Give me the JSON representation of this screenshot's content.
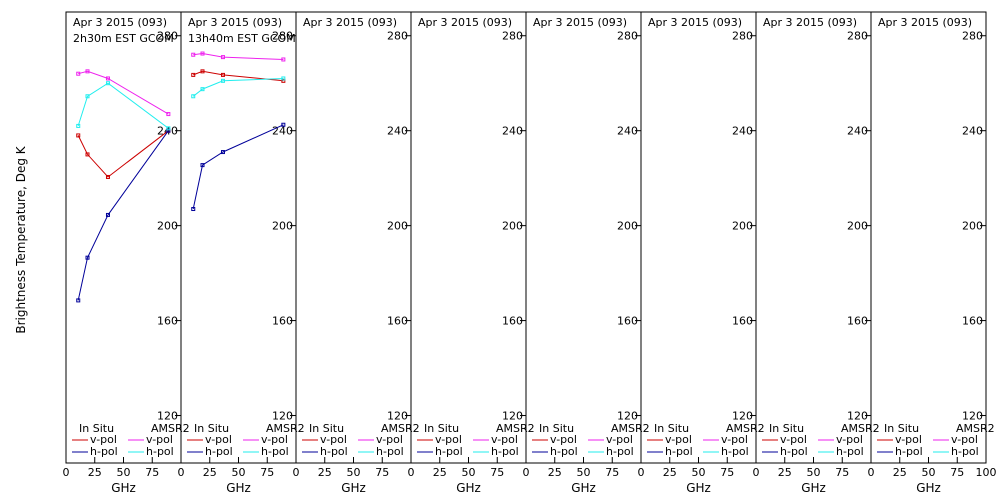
{
  "ylabel": "Brightness Temperature, Deg K",
  "xlabel": "GHz",
  "legend": {
    "insitu_header": "In Situ",
    "amsr2_header": "AMSR2",
    "vpol": "v-pol",
    "hpol": "h-pol"
  },
  "colors": {
    "insitu_v": "#cc0000",
    "insitu_h": "#000099",
    "amsr2_v": "#ee22ee",
    "amsr2_h": "#22eeee"
  },
  "chart_data": [
    {
      "type": "line",
      "title": "Apr 3 2015 (093)",
      "subtitle": "2h30m EST GCOM",
      "xlim": [
        0,
        100
      ],
      "ylim": [
        100,
        290
      ],
      "xticks": [
        0,
        25,
        50,
        75,
        100
      ],
      "yticks": [
        120,
        160,
        200,
        240,
        280
      ],
      "series": [
        {
          "name": "In Situ v-pol",
          "x": [
            10.65,
            18.7,
            36.5,
            89
          ],
          "y": [
            238,
            230,
            220.5,
            240
          ]
        },
        {
          "name": "In Situ h-pol",
          "x": [
            10.65,
            18.7,
            36.5,
            89
          ],
          "y": [
            168.5,
            186.5,
            204.5,
            240
          ]
        },
        {
          "name": "AMSR2 v-pol",
          "x": [
            10.65,
            18.7,
            36.5,
            89
          ],
          "y": [
            264,
            265,
            262,
            247
          ]
        },
        {
          "name": "AMSR2 h-pol",
          "x": [
            10.65,
            18.7,
            36.5,
            89
          ],
          "y": [
            242,
            254.5,
            260,
            241
          ]
        }
      ]
    },
    {
      "type": "line",
      "title": "Apr 3 2015 (093)",
      "subtitle": "13h40m EST GCOM",
      "xlim": [
        0,
        100
      ],
      "ylim": [
        100,
        290
      ],
      "xticks": [
        0,
        25,
        50,
        75,
        100
      ],
      "yticks": [
        120,
        160,
        200,
        240,
        280
      ],
      "series": [
        {
          "name": "In Situ v-pol",
          "x": [
            10.65,
            18.7,
            36.5,
            89
          ],
          "y": [
            263.5,
            265,
            263.5,
            261
          ]
        },
        {
          "name": "In Situ h-pol",
          "x": [
            10.65,
            18.7,
            36.5,
            89
          ],
          "y": [
            207,
            225.5,
            231,
            242.5
          ]
        },
        {
          "name": "AMSR2 v-pol",
          "x": [
            10.65,
            18.7,
            36.5,
            89
          ],
          "y": [
            272,
            272.5,
            271,
            270
          ]
        },
        {
          "name": "AMSR2 h-pol",
          "x": [
            10.65,
            18.7,
            36.5,
            89
          ],
          "y": [
            254.5,
            257.5,
            261,
            262
          ]
        }
      ]
    },
    {
      "type": "line",
      "title": "Apr 3 2015 (093)",
      "xlim": [
        0,
        100
      ],
      "ylim": [
        100,
        290
      ],
      "xticks": [
        0,
        25,
        50,
        75,
        100
      ],
      "yticks": [
        120,
        160,
        200,
        240,
        280
      ],
      "series": []
    },
    {
      "type": "line",
      "title": "Apr 3 2015 (093)",
      "xlim": [
        0,
        100
      ],
      "ylim": [
        100,
        290
      ],
      "xticks": [
        0,
        25,
        50,
        75,
        100
      ],
      "yticks": [
        120,
        160,
        200,
        240,
        280
      ],
      "series": []
    },
    {
      "type": "line",
      "title": "Apr 3 2015 (093)",
      "xlim": [
        0,
        100
      ],
      "ylim": [
        100,
        290
      ],
      "xticks": [
        0,
        25,
        50,
        75,
        100
      ],
      "yticks": [
        120,
        160,
        200,
        240,
        280
      ],
      "series": []
    },
    {
      "type": "line",
      "title": "Apr 3 2015 (093)",
      "xlim": [
        0,
        100
      ],
      "ylim": [
        100,
        290
      ],
      "xticks": [
        0,
        25,
        50,
        75,
        100
      ],
      "yticks": [
        120,
        160,
        200,
        240,
        280
      ],
      "series": []
    },
    {
      "type": "line",
      "title": "Apr 3 2015 (093)",
      "xlim": [
        0,
        100
      ],
      "ylim": [
        100,
        290
      ],
      "xticks": [
        0,
        25,
        50,
        75,
        100
      ],
      "yticks": [
        120,
        160,
        200,
        240,
        280
      ],
      "series": []
    },
    {
      "type": "line",
      "title": "Apr 3 2015 (093)",
      "xlim": [
        0,
        100
      ],
      "ylim": [
        100,
        290
      ],
      "xticks": [
        0,
        25,
        50,
        75,
        100
      ],
      "yticks": [
        120,
        160,
        200,
        240,
        280
      ],
      "series": []
    }
  ]
}
